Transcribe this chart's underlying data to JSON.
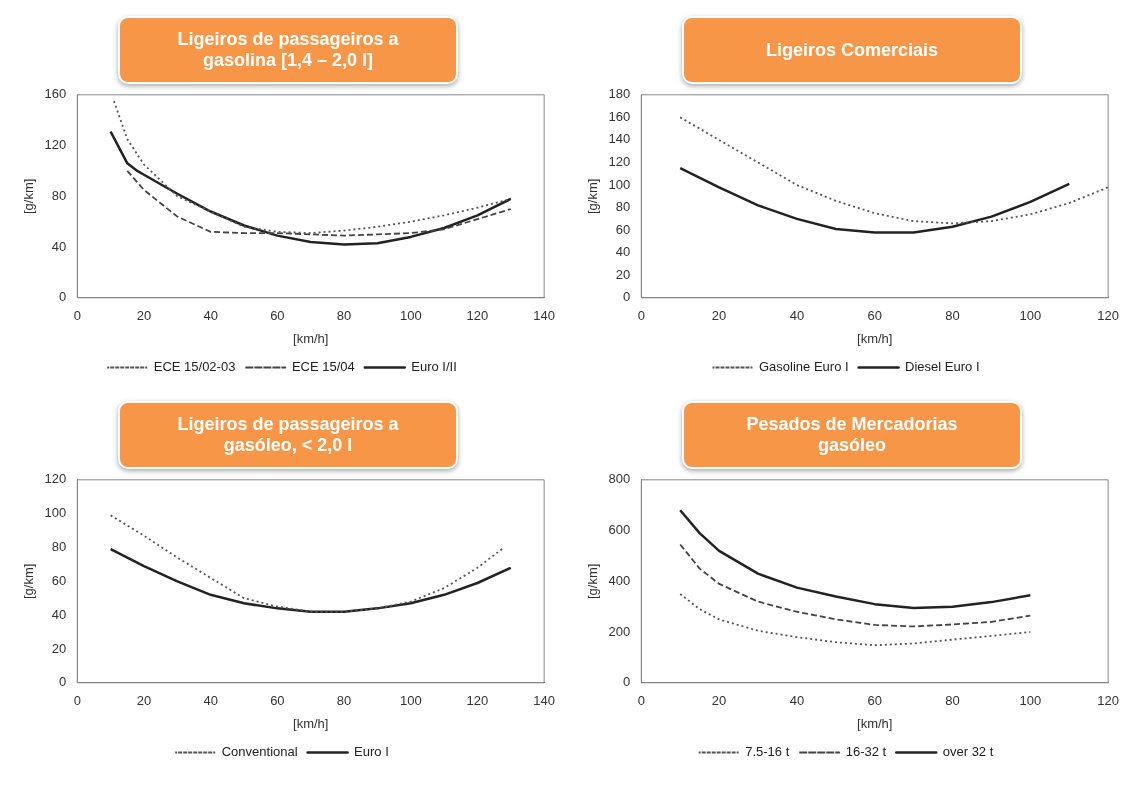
{
  "chart_data": [
    {
      "type": "line",
      "title": "Ligeiros de passageiros a gasolina [1,4 – 2,0 l]",
      "xlabel": "[km/h]",
      "ylabel": "[g/km]",
      "xlim": [
        0,
        140
      ],
      "xticks": [
        0,
        20,
        40,
        60,
        80,
        100,
        120,
        140
      ],
      "ylim": [
        0,
        160
      ],
      "yticks": [
        0,
        40,
        80,
        120,
        160
      ],
      "legend": "bottom",
      "series": [
        {
          "name": "ECE 15/02-03",
          "color": "#555555",
          "line_style": "dotted",
          "x": [
            11,
            15,
            20,
            30,
            40,
            50,
            60,
            70,
            80,
            90,
            100,
            110,
            120,
            130
          ],
          "values": [
            155,
            125,
            105,
            80,
            68,
            56,
            52,
            51,
            53,
            56,
            60,
            65,
            71,
            78
          ]
        },
        {
          "name": "ECE 15/04",
          "color": "#444444",
          "line_style": "dashed",
          "x": [
            15,
            20,
            30,
            40,
            50,
            60,
            70,
            80,
            90,
            100,
            110,
            120,
            130
          ],
          "values": [
            100,
            85,
            64,
            52,
            51,
            51,
            50,
            49,
            50,
            51,
            54,
            62,
            70
          ]
        },
        {
          "name": "Euro I/II",
          "color": "#222222",
          "line_style": "solid",
          "x": [
            10,
            15,
            18,
            20,
            30,
            40,
            50,
            60,
            70,
            80,
            90,
            100,
            110,
            120,
            130
          ],
          "values": [
            131,
            106,
            100,
            97,
            82,
            68,
            57,
            49,
            44,
            42,
            43,
            48,
            55,
            65,
            78
          ]
        }
      ]
    },
    {
      "type": "line",
      "title": "Ligeiros Comerciais",
      "xlabel": "[km/h]",
      "ylabel": "[g/km]",
      "xlim": [
        0,
        120
      ],
      "xticks": [
        0,
        20,
        40,
        60,
        80,
        100,
        120
      ],
      "ylim": [
        0,
        180
      ],
      "yticks": [
        0,
        20,
        40,
        60,
        80,
        100,
        120,
        140,
        160,
        180
      ],
      "legend": "bottom",
      "series": [
        {
          "name": "Gasoline Euro I",
          "color": "#555555",
          "line_style": "dotted",
          "x": [
            10,
            20,
            30,
            40,
            50,
            60,
            70,
            80,
            90,
            100,
            110,
            120
          ],
          "values": [
            160,
            140,
            120,
            100,
            86,
            75,
            68,
            66,
            68,
            74,
            84,
            98
          ]
        },
        {
          "name": "Diesel Euro I",
          "color": "#222222",
          "line_style": "solid",
          "x": [
            10,
            20,
            30,
            40,
            50,
            60,
            70,
            80,
            90,
            100,
            110
          ],
          "values": [
            115,
            98,
            82,
            70,
            61,
            58,
            58,
            63,
            72,
            85,
            101
          ]
        }
      ]
    },
    {
      "type": "line",
      "title": "Ligeiros de passageiros a gasóleo, < 2,0 l",
      "xlabel": "[km/h]",
      "ylabel": "[g/km]",
      "xlim": [
        0,
        140
      ],
      "xticks": [
        0,
        20,
        40,
        60,
        80,
        100,
        120,
        140
      ],
      "ylim": [
        0,
        120
      ],
      "yticks": [
        0,
        20,
        40,
        60,
        80,
        100,
        120
      ],
      "legend": "bottom",
      "series": [
        {
          "name": "Conventional",
          "color": "#555555",
          "line_style": "dotted",
          "x": [
            10,
            20,
            30,
            40,
            50,
            60,
            70,
            80,
            90,
            100,
            110,
            120,
            128
          ],
          "values": [
            99,
            87,
            74,
            62,
            50,
            45,
            42,
            42,
            44,
            48,
            56,
            68,
            80
          ]
        },
        {
          "name": "Euro I",
          "color": "#222222",
          "line_style": "solid",
          "x": [
            10,
            20,
            30,
            40,
            50,
            60,
            70,
            80,
            90,
            100,
            110,
            120,
            130
          ],
          "values": [
            79,
            69,
            60,
            52,
            47,
            44,
            42,
            42,
            44,
            47,
            52,
            59,
            68
          ]
        }
      ]
    },
    {
      "type": "line",
      "title": "Pesados de Mercadorias gasóleo",
      "xlabel": "[km/h]",
      "ylabel": "[g/km]",
      "xlim": [
        0,
        120
      ],
      "xticks": [
        0,
        20,
        40,
        60,
        80,
        100,
        120
      ],
      "ylim": [
        0,
        800
      ],
      "yticks": [
        0,
        200,
        400,
        600,
        800
      ],
      "legend": "bottom",
      "series": [
        {
          "name": "7.5-16 t",
          "color": "#555555",
          "line_style": "dotted",
          "x": [
            10,
            15,
            20,
            30,
            40,
            50,
            60,
            70,
            80,
            90,
            100
          ],
          "values": [
            350,
            290,
            250,
            205,
            180,
            160,
            148,
            155,
            170,
            185,
            200
          ]
        },
        {
          "name": "16-32 t",
          "color": "#444444",
          "line_style": "dashed",
          "x": [
            10,
            15,
            20,
            30,
            40,
            50,
            60,
            70,
            80,
            90,
            100
          ],
          "values": [
            545,
            450,
            390,
            320,
            280,
            250,
            228,
            222,
            230,
            240,
            265
          ]
        },
        {
          "name": "over 32 t",
          "color": "#222222",
          "line_style": "solid",
          "x": [
            10,
            15,
            20,
            30,
            40,
            50,
            60,
            70,
            80,
            90,
            100
          ],
          "values": [
            680,
            590,
            520,
            430,
            375,
            340,
            310,
            295,
            300,
            318,
            345
          ]
        }
      ]
    }
  ]
}
